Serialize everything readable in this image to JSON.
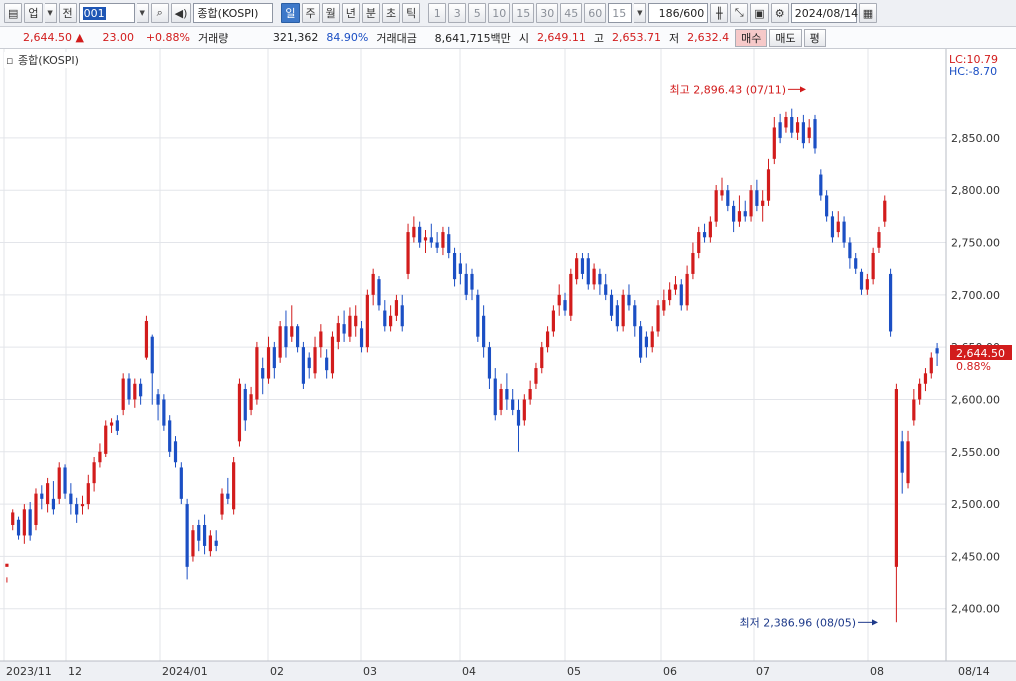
{
  "toolbar": {
    "type_label": "업",
    "prev_label": "전",
    "code_value": "001",
    "name_value": "종합(KOSPI)",
    "periods": [
      "일",
      "주",
      "월",
      "년",
      "분",
      "초",
      "틱"
    ],
    "active_period": "일",
    "minutes": [
      "1",
      "3",
      "5",
      "10",
      "15",
      "30",
      "45",
      "60"
    ],
    "minute_custom": "15",
    "count_value": "186",
    "count_total": "/600",
    "date_value": "2024/08/14"
  },
  "quote": {
    "price": "2,644.50",
    "change": "23.00",
    "change_pct": "+0.88%",
    "volume_label": "거래량",
    "volume": "321,362",
    "volume_ratio": "84.90%",
    "amount_label": "거래대금",
    "amount": "8,641,715백만",
    "open_label": "시",
    "open": "2,649.11",
    "high_label": "고",
    "high": "2,653.71",
    "low_label": "저",
    "low": "2,632.4",
    "buy_label": "매수",
    "sell_label": "매도",
    "avg_label": "평"
  },
  "chart_legend": "종합(KOSPI)",
  "lc_text": "LC:10.79",
  "hc_text": "HC:-8.70",
  "last_price_tag": "2,644.50",
  "last_pct_tag": "0.88%",
  "annotations": {
    "high": "최고 2,896.43 (07/11)",
    "low": "최저 2,386.96 (08/05)"
  },
  "colors": {
    "up": "#d21c1c",
    "down": "#1b4fc4",
    "grid": "#e3e5ea",
    "tag": "#d21c1c"
  },
  "y_ticks": [
    "2,850.00",
    "2,800.00",
    "2,750.00",
    "2,700.00",
    "2,650.00",
    "2,600.00",
    "2,550.00",
    "2,500.00",
    "2,450.00",
    "2,400.00"
  ],
  "x_labels": [
    "2023/11",
    "12",
    "2024/01",
    "02",
    "03",
    "04",
    "05",
    "06",
    "07",
    "08",
    "08/14"
  ],
  "chart_data": {
    "type": "candlestick",
    "title": "종합(KOSPI)",
    "period": "daily",
    "ylim": [
      2350,
      2935
    ],
    "y_ticks": [
      2400,
      2450,
      2500,
      2550,
      2600,
      2650,
      2700,
      2750,
      2800,
      2850
    ],
    "x_month_labels": [
      "2023/11",
      "12",
      "2024/01",
      "02",
      "03",
      "04",
      "05",
      "06",
      "07",
      "08"
    ],
    "last_date": "08/14",
    "high": {
      "value": 2896.43,
      "date": "07/11"
    },
    "low": {
      "value": 2386.96,
      "date": "08/05"
    },
    "last": {
      "value": 2644.5,
      "change_pct": 0.88
    },
    "candles": [
      [
        2440,
        2443,
        2430,
        2425
      ],
      [
        2480,
        2492,
        2495,
        2475
      ],
      [
        2485,
        2470,
        2488,
        2466
      ],
      [
        2470,
        2495,
        2500,
        2462
      ],
      [
        2495,
        2470,
        2502,
        2465
      ],
      [
        2480,
        2510,
        2515,
        2475
      ],
      [
        2510,
        2505,
        2518,
        2495
      ],
      [
        2500,
        2520,
        2525,
        2492
      ],
      [
        2505,
        2495,
        2522,
        2490
      ],
      [
        2505,
        2535,
        2540,
        2500
      ],
      [
        2535,
        2510,
        2538,
        2505
      ],
      [
        2510,
        2500,
        2520,
        2490
      ],
      [
        2500,
        2490,
        2506,
        2482
      ],
      [
        2498,
        2500,
        2508,
        2490
      ],
      [
        2500,
        2520,
        2528,
        2495
      ],
      [
        2520,
        2540,
        2545,
        2512
      ],
      [
        2540,
        2550,
        2558,
        2535
      ],
      [
        2548,
        2575,
        2580,
        2545
      ],
      [
        2575,
        2578,
        2582,
        2568
      ],
      [
        2580,
        2570,
        2585,
        2566
      ],
      [
        2590,
        2620,
        2625,
        2585
      ],
      [
        2620,
        2600,
        2625,
        2595
      ],
      [
        2600,
        2615,
        2620,
        2592
      ],
      [
        2615,
        2603,
        2620,
        2595
      ],
      [
        2640,
        2675,
        2680,
        2638
      ],
      [
        2660,
        2625,
        2662,
        2595
      ],
      [
        2605,
        2595,
        2610,
        2580
      ],
      [
        2600,
        2575,
        2605,
        2570
      ],
      [
        2580,
        2550,
        2585,
        2545
      ],
      [
        2560,
        2540,
        2565,
        2535
      ],
      [
        2535,
        2505,
        2540,
        2500
      ],
      [
        2500,
        2440,
        2505,
        2428
      ],
      [
        2450,
        2475,
        2480,
        2445
      ],
      [
        2480,
        2465,
        2485,
        2455
      ],
      [
        2480,
        2460,
        2490,
        2452
      ],
      [
        2455,
        2470,
        2475,
        2450
      ],
      [
        2465,
        2460,
        2475,
        2455
      ],
      [
        2490,
        2510,
        2515,
        2485
      ],
      [
        2510,
        2505,
        2525,
        2500
      ],
      [
        2495,
        2540,
        2545,
        2490
      ],
      [
        2560,
        2615,
        2620,
        2555
      ],
      [
        2610,
        2580,
        2615,
        2570
      ],
      [
        2590,
        2605,
        2612,
        2585
      ],
      [
        2600,
        2650,
        2655,
        2595
      ],
      [
        2630,
        2620,
        2640,
        2605
      ],
      [
        2620,
        2650,
        2660,
        2615
      ],
      [
        2650,
        2630,
        2655,
        2620
      ],
      [
        2640,
        2670,
        2675,
        2635
      ],
      [
        2670,
        2650,
        2685,
        2640
      ],
      [
        2660,
        2670,
        2690,
        2655
      ],
      [
        2670,
        2650,
        2672,
        2645
      ],
      [
        2650,
        2615,
        2655,
        2610
      ],
      [
        2640,
        2630,
        2645,
        2620
      ],
      [
        2625,
        2650,
        2660,
        2620
      ],
      [
        2650,
        2665,
        2672,
        2640
      ],
      [
        2640,
        2628,
        2648,
        2620
      ],
      [
        2625,
        2660,
        2665,
        2620
      ],
      [
        2655,
        2673,
        2680,
        2648
      ],
      [
        2672,
        2663,
        2685,
        2655
      ],
      [
        2660,
        2680,
        2688,
        2655
      ],
      [
        2670,
        2680,
        2690,
        2660
      ],
      [
        2668,
        2650,
        2675,
        2645
      ],
      [
        2650,
        2700,
        2705,
        2645
      ],
      [
        2700,
        2720,
        2725,
        2690
      ],
      [
        2715,
        2690,
        2718,
        2685
      ],
      [
        2685,
        2670,
        2695,
        2665
      ],
      [
        2670,
        2680,
        2690,
        2665
      ],
      [
        2680,
        2695,
        2700,
        2675
      ],
      [
        2690,
        2670,
        2700,
        2665
      ],
      [
        2720,
        2760,
        2768,
        2715
      ],
      [
        2755,
        2765,
        2775,
        2750
      ],
      [
        2765,
        2750,
        2770,
        2745
      ],
      [
        2752,
        2755,
        2762,
        2740
      ],
      [
        2755,
        2750,
        2768,
        2745
      ],
      [
        2750,
        2745,
        2760,
        2740
      ],
      [
        2745,
        2760,
        2765,
        2738
      ],
      [
        2758,
        2740,
        2765,
        2735
      ],
      [
        2740,
        2715,
        2745,
        2708
      ],
      [
        2730,
        2720,
        2740,
        2710
      ],
      [
        2720,
        2700,
        2730,
        2695
      ],
      [
        2720,
        2705,
        2725,
        2695
      ],
      [
        2700,
        2660,
        2705,
        2655
      ],
      [
        2680,
        2650,
        2690,
        2640
      ],
      [
        2650,
        2620,
        2655,
        2610
      ],
      [
        2620,
        2585,
        2630,
        2580
      ],
      [
        2590,
        2610,
        2615,
        2585
      ],
      [
        2610,
        2600,
        2625,
        2590
      ],
      [
        2600,
        2590,
        2610,
        2585
      ],
      [
        2590,
        2575,
        2600,
        2550
      ],
      [
        2580,
        2600,
        2605,
        2575
      ],
      [
        2600,
        2610,
        2618,
        2595
      ],
      [
        2615,
        2630,
        2635,
        2610
      ],
      [
        2630,
        2650,
        2655,
        2625
      ],
      [
        2650,
        2665,
        2670,
        2645
      ],
      [
        2665,
        2685,
        2690,
        2660
      ],
      [
        2690,
        2700,
        2710,
        2680
      ],
      [
        2695,
        2685,
        2702,
        2680
      ],
      [
        2680,
        2720,
        2725,
        2675
      ],
      [
        2715,
        2735,
        2740,
        2710
      ],
      [
        2735,
        2720,
        2740,
        2715
      ],
      [
        2735,
        2710,
        2740,
        2705
      ],
      [
        2710,
        2725,
        2730,
        2705
      ],
      [
        2720,
        2710,
        2725,
        2700
      ],
      [
        2710,
        2700,
        2720,
        2695
      ],
      [
        2700,
        2680,
        2705,
        2675
      ],
      [
        2690,
        2670,
        2695,
        2665
      ],
      [
        2670,
        2700,
        2705,
        2665
      ],
      [
        2700,
        2690,
        2710,
        2685
      ],
      [
        2690,
        2670,
        2695,
        2660
      ],
      [
        2670,
        2640,
        2675,
        2635
      ],
      [
        2660,
        2650,
        2665,
        2640
      ],
      [
        2650,
        2665,
        2670,
        2645
      ],
      [
        2665,
        2690,
        2695,
        2660
      ],
      [
        2685,
        2695,
        2705,
        2680
      ],
      [
        2695,
        2705,
        2712,
        2690
      ],
      [
        2705,
        2710,
        2718,
        2700
      ],
      [
        2710,
        2690,
        2715,
        2685
      ],
      [
        2690,
        2720,
        2728,
        2685
      ],
      [
        2720,
        2740,
        2750,
        2715
      ],
      [
        2740,
        2760,
        2765,
        2735
      ],
      [
        2760,
        2755,
        2768,
        2750
      ],
      [
        2755,
        2770,
        2775,
        2750
      ],
      [
        2770,
        2800,
        2805,
        2765
      ],
      [
        2795,
        2800,
        2812,
        2790
      ],
      [
        2800,
        2785,
        2805,
        2780
      ],
      [
        2785,
        2770,
        2790,
        2760
      ],
      [
        2770,
        2780,
        2795,
        2765
      ],
      [
        2780,
        2775,
        2790,
        2770
      ],
      [
        2775,
        2800,
        2805,
        2770
      ],
      [
        2800,
        2785,
        2810,
        2780
      ],
      [
        2785,
        2790,
        2800,
        2770
      ],
      [
        2790,
        2820,
        2830,
        2785
      ],
      [
        2830,
        2860,
        2870,
        2825
      ],
      [
        2865,
        2850,
        2873,
        2845
      ],
      [
        2860,
        2870,
        2875,
        2855
      ],
      [
        2870,
        2855,
        2878,
        2850
      ],
      [
        2855,
        2865,
        2870,
        2848
      ],
      [
        2865,
        2845,
        2872,
        2840
      ],
      [
        2850,
        2860,
        2868,
        2845
      ],
      [
        2868,
        2840,
        2872,
        2835
      ],
      [
        2815,
        2795,
        2820,
        2790
      ],
      [
        2795,
        2775,
        2800,
        2770
      ],
      [
        2775,
        2755,
        2780,
        2750
      ],
      [
        2760,
        2770,
        2780,
        2755
      ],
      [
        2770,
        2750,
        2775,
        2745
      ],
      [
        2750,
        2735,
        2755,
        2725
      ],
      [
        2735,
        2725,
        2740,
        2720
      ],
      [
        2722,
        2705,
        2725,
        2700
      ],
      [
        2705,
        2715,
        2720,
        2700
      ],
      [
        2715,
        2740,
        2745,
        2710
      ],
      [
        2745,
        2760,
        2765,
        2740
      ],
      [
        2770,
        2790,
        2795,
        2765
      ],
      [
        2720,
        2665,
        2725,
        2660
      ],
      [
        2440,
        2610,
        2615,
        2387
      ],
      [
        2560,
        2530,
        2570,
        2510
      ],
      [
        2520,
        2560,
        2570,
        2515
      ],
      [
        2580,
        2600,
        2610,
        2575
      ],
      [
        2600,
        2615,
        2620,
        2595
      ],
      [
        2615,
        2625,
        2630,
        2608
      ],
      [
        2625,
        2640,
        2645,
        2620
      ],
      [
        2649,
        2644,
        2654,
        2632
      ]
    ]
  }
}
